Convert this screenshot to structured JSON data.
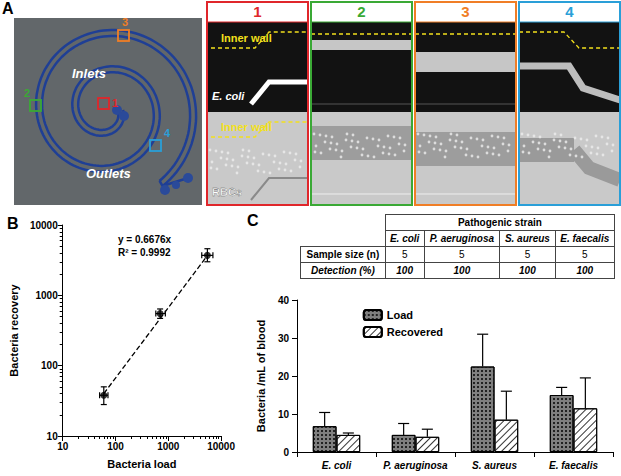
{
  "panel_a": {
    "label": "A",
    "map_labels": {
      "inlets": "Inlets",
      "outlets": "Outlets"
    },
    "micrographs": [
      {
        "number": "1",
        "color": "#e0262b",
        "top_texts": [
          "Inner wall",
          "E. coli"
        ],
        "bottom_texts": [
          "Inner wall",
          "RBCs"
        ]
      },
      {
        "number": "2",
        "color": "#3aa935",
        "top_texts": [],
        "bottom_texts": []
      },
      {
        "number": "3",
        "color": "#f07e26",
        "top_texts": [],
        "bottom_texts": []
      },
      {
        "number": "4",
        "color": "#2a9fd8",
        "top_texts": [],
        "bottom_texts": []
      }
    ]
  },
  "table": {
    "header": "Pathogenic strain",
    "columns": [
      "E. coli",
      "P. aeruginosa",
      "S. aureus",
      "E. faecalis"
    ],
    "rows": [
      [
        "Sample size (n)",
        5,
        5,
        5,
        5
      ],
      [
        "Detection (%)",
        100,
        100,
        100,
        100
      ]
    ]
  },
  "chart_data": [
    {
      "type": "scatter",
      "title": "B",
      "xlabel": "Bacteria load",
      "ylabel": "Bacteria recovery",
      "log": true,
      "xlim": [
        10,
        10000
      ],
      "ylim": [
        10,
        10000
      ],
      "xticks": [
        10,
        100,
        1000,
        10000
      ],
      "yticks": [
        10,
        100,
        1000,
        10000
      ],
      "grid": false,
      "annotations": [
        "y = 0.6676x",
        "R² = 0.9992"
      ],
      "series": [
        {
          "type": "scatter",
          "color": "#000000",
          "marker": "circle",
          "x": [
            60,
            700,
            5500
          ],
          "values": [
            38,
            550,
            3700
          ],
          "x_bounds": [
            [
              50,
              72
            ],
            [
              580,
              880
            ],
            [
              4300,
              7000
            ]
          ],
          "y_bounds": [
            [
              28,
              50
            ],
            [
              470,
              640
            ],
            [
              3000,
              4600
            ]
          ]
        },
        {
          "type": "line",
          "color": "#000000",
          "line_style": "dashed",
          "x": [
            60,
            5500
          ],
          "values": [
            40,
            3672
          ]
        }
      ]
    },
    {
      "type": "bar",
      "title": "C",
      "ylabel": "Bacteria /mL of blood",
      "categories": [
        "E. coli",
        "P. aeruginosa",
        "S. aureus",
        "E. faecalis"
      ],
      "ylim": [
        0,
        40
      ],
      "yticks": [
        0,
        10,
        20,
        30,
        40
      ],
      "grid": false,
      "legend": "top",
      "series": [
        {
          "name": "Load",
          "color": "#7f7f7f",
          "values": [
            6.8,
            4.5,
            22.5,
            15
          ],
          "errors": [
            3.6,
            3,
            8.5,
            2
          ]
        },
        {
          "name": "Recovered",
          "color": "#ffffff",
          "values": [
            4.5,
            4,
            8.5,
            11.5
          ],
          "errors": [
            0.5,
            2,
            7.5,
            8
          ]
        }
      ]
    }
  ]
}
